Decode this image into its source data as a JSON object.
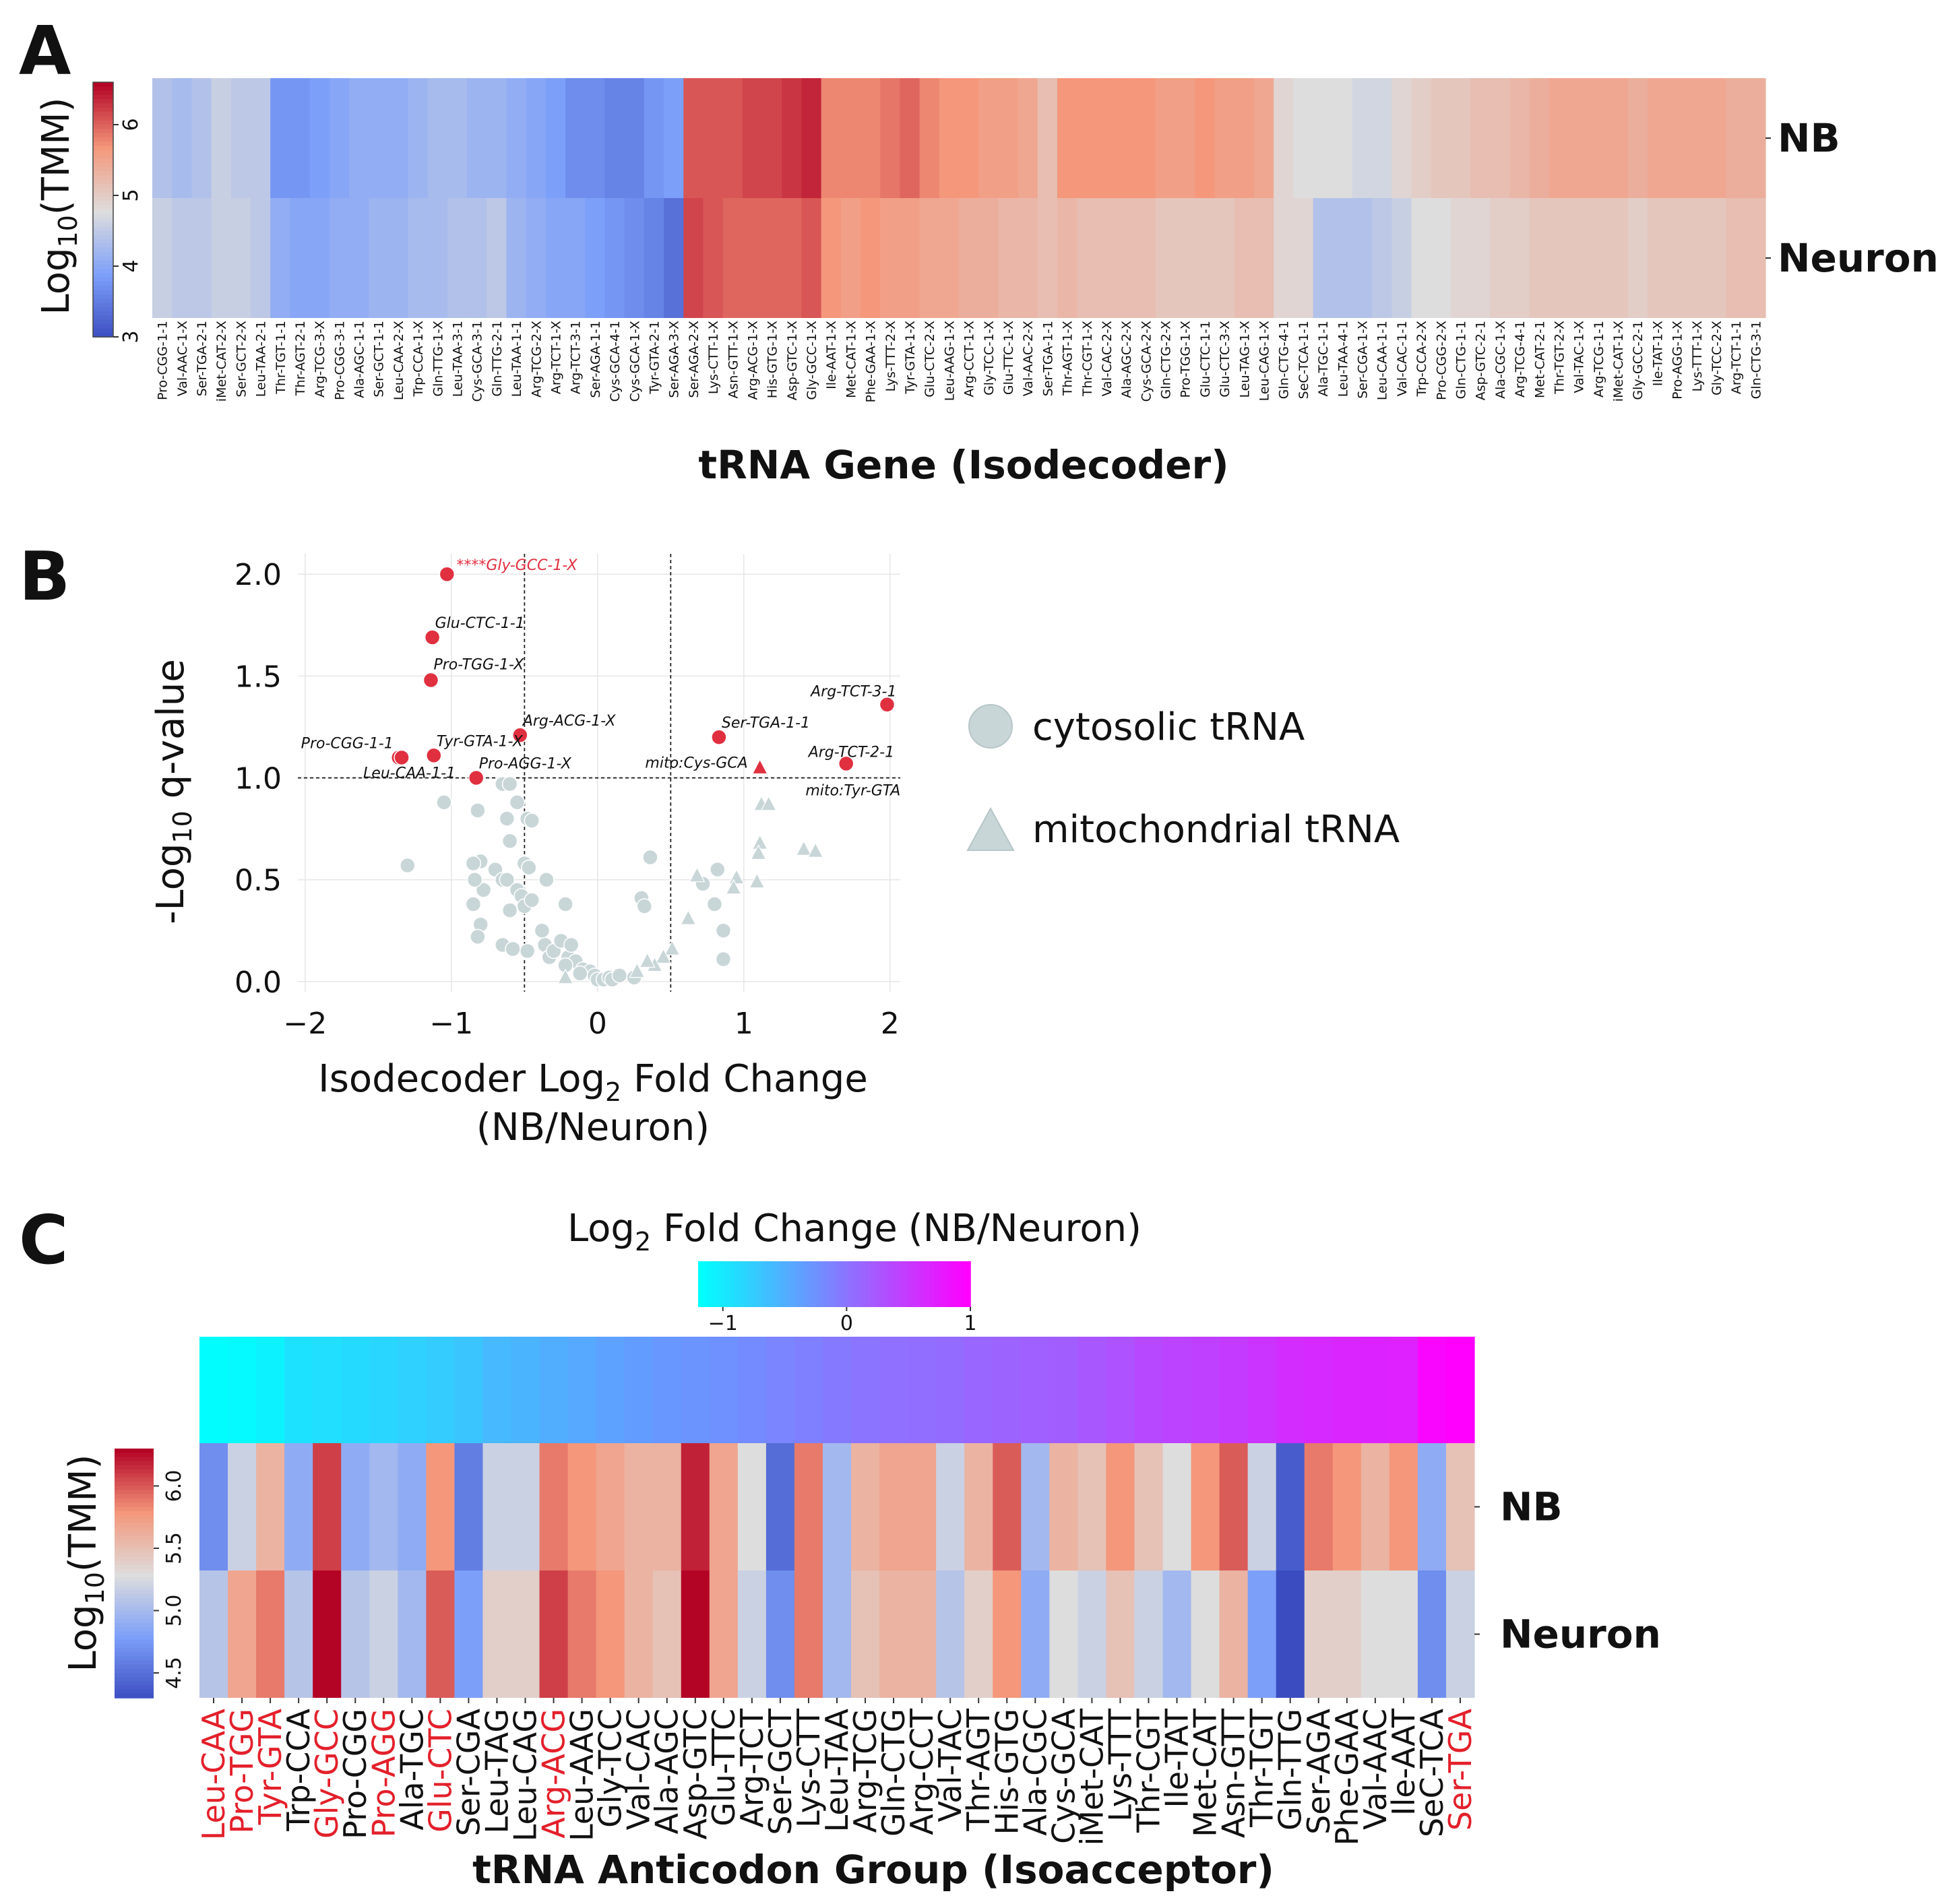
{
  "panels": {
    "a": "A",
    "b": "B",
    "c": "C"
  },
  "chart_data": [
    {
      "type": "heatmap",
      "id": "A",
      "title": "",
      "xlabel": "tRNA Gene (Isodecoder)",
      "colorbar_label": "Log10(TMM)",
      "colorbar_ticks": [
        3,
        4,
        5,
        6
      ],
      "colorbar_range": [
        3,
        6.6
      ],
      "rows": [
        "NB",
        "Neuron"
      ],
      "categories": [
        "Pro-CGG-1-1",
        "Val-AAC-1-X",
        "Ser-TGA-2-1",
        "iMet-CAT-2-X",
        "Ser-GCT-2-X",
        "Leu-TAA-2-1",
        "Thr-TGT-1-1",
        "Thr-AGT-2-1",
        "Arg-TCG-3-X",
        "Pro-CGG-3-1",
        "Ala-AGC-1-1",
        "Ser-GCT-1-1",
        "Leu-CAA-2-X",
        "Trp-CCA-1-X",
        "Gln-TTG-1-X",
        "Leu-TAA-3-1",
        "Cys-GCA-3-1",
        "Gln-TTG-2-1",
        "Leu-TAA-1-1",
        "Arg-TCG-2-X",
        "Arg-TCT-1-X",
        "Arg-TCT-3-1",
        "Ser-AGA-1-1",
        "Cys-GCA-4-1",
        "Cys-GCA-1-X",
        "Tyr-GTA-2-1",
        "Ser-AGA-3-X",
        "Ser-AGA-2-X",
        "Lys-CTT-1-X",
        "Asn-GTT-1-X",
        "Arg-ACG-1-X",
        "His-GTG-1-X",
        "Asp-GTC-1-X",
        "Gly-GCC-1-X",
        "Ile-AAT-1-X",
        "Met-CAT-1-X",
        "Phe-GAA-1-X",
        "Lys-TTT-2-X",
        "Tyr-GTA-1-X",
        "Glu-CTC-2-X",
        "Leu-AAG-1-X",
        "Arg-CCT-1-X",
        "Gly-TCC-1-X",
        "Glu-TTC-1-X",
        "Val-AAC-2-X",
        "Ser-TGA-1-1",
        "Thr-AGT-1-X",
        "Thr-CGT-1-X",
        "Val-CAC-2-X",
        "Ala-AGC-2-X",
        "Cys-GCA-2-X",
        "Gln-CTG-2-X",
        "Pro-TGG-1-X",
        "Glu-CTC-1-1",
        "Glu-CTC-3-X",
        "Leu-TAG-1-X",
        "Leu-CAG-1-X",
        "Gln-CTG-4-1",
        "SeC-TCA-1-1",
        "Ala-TGC-1-1",
        "Leu-TAA-4-1",
        "Ser-CGA-1-X",
        "Leu-CAA-1-1",
        "Val-CAC-1-1",
        "Trp-CCA-2-X",
        "Pro-CGG-2-X",
        "Gln-CTG-1-1",
        "Asp-GTC-2-1",
        "Ala-CGC-1-X",
        "Arg-TCG-4-1",
        "Met-CAT-2-1",
        "Thr-TGT-2-X",
        "Val-TAC-1-X",
        "Arg-TCG-1-1",
        "iMet-CAT-1-X",
        "Gly-GCC-2-1",
        "Ile-TAT-1-X",
        "Pro-AGG-1-X",
        "Lys-TTT-1-X",
        "Gly-TCC-2-X",
        "Arg-TCT-1-1",
        "Gln-CTG-3-1"
      ],
      "values": {
        "NB": [
          4.4,
          4.3,
          4.4,
          4.6,
          4.5,
          4.5,
          3.8,
          3.8,
          3.9,
          4.0,
          4.1,
          4.1,
          4.1,
          4.2,
          4.3,
          4.3,
          4.2,
          4.2,
          4.1,
          4.0,
          3.9,
          3.7,
          3.7,
          3.6,
          3.6,
          3.8,
          3.9,
          6.1,
          6.1,
          6.1,
          6.2,
          6.2,
          6.3,
          6.4,
          5.8,
          5.8,
          5.8,
          5.9,
          6.0,
          5.8,
          5.7,
          5.7,
          5.6,
          5.6,
          5.5,
          5.2,
          5.7,
          5.7,
          5.7,
          5.7,
          5.7,
          5.6,
          5.6,
          5.7,
          5.6,
          5.6,
          5.5,
          4.9,
          4.8,
          4.8,
          4.8,
          4.7,
          4.7,
          4.9,
          5.0,
          5.1,
          5.1,
          5.2,
          5.2,
          5.3,
          5.4,
          5.5,
          5.5,
          5.5,
          5.5,
          5.4,
          5.5,
          5.5,
          5.5,
          5.5,
          5.4,
          5.4
        ],
        "Neuron": [
          4.6,
          4.5,
          4.5,
          4.6,
          4.6,
          4.5,
          4.1,
          4.0,
          4.0,
          4.1,
          4.1,
          4.2,
          4.2,
          4.3,
          4.3,
          4.4,
          4.4,
          4.5,
          4.2,
          4.1,
          4.0,
          4.0,
          3.9,
          3.8,
          3.7,
          3.6,
          3.4,
          6.2,
          6.1,
          6.0,
          6.0,
          6.0,
          6.0,
          6.1,
          5.7,
          5.6,
          5.7,
          5.6,
          5.6,
          5.5,
          5.5,
          5.4,
          5.4,
          5.3,
          5.3,
          5.2,
          5.3,
          5.2,
          5.2,
          5.2,
          5.2,
          5.1,
          5.1,
          5.1,
          5.1,
          5.2,
          5.2,
          4.9,
          4.9,
          4.4,
          4.4,
          4.4,
          4.5,
          4.6,
          4.8,
          4.8,
          4.9,
          4.9,
          5.0,
          5.0,
          5.1,
          5.1,
          5.1,
          5.1,
          5.1,
          5.0,
          5.1,
          5.1,
          5.1,
          5.1,
          5.2,
          5.2
        ]
      }
    },
    {
      "type": "scatter",
      "id": "B",
      "xlabel": "Isodecoder Log2 Fold Change",
      "xlabel_main": "Isodecoder Log",
      "xlabel_sub": "2",
      "xlabel_tail": " Fold Change",
      "xlabel2": "(NB/Neuron)",
      "ylabel": "-Log10 q-value",
      "xlim": [
        -2.05,
        2.07
      ],
      "ylim": [
        -0.05,
        2.1
      ],
      "xticks": [
        -2,
        -1,
        0,
        1,
        2
      ],
      "yticks": [
        0.0,
        0.5,
        1.0,
        1.5,
        2.0
      ],
      "xtick_labels": [
        "−2",
        "−1",
        "0",
        "1",
        "2"
      ],
      "ytick_labels": [
        "0.0",
        "0.5",
        "1.0",
        "1.5",
        "2.0"
      ],
      "vlines": [
        -0.5,
        0.5
      ],
      "hline": 1.0,
      "legend": [
        "cytosolic tRNA",
        "mitochondrial tRNA"
      ],
      "significant": [
        {
          "label": "****Gly-GCC-1-X",
          "x": -1.03,
          "y": 2.0,
          "shape": "circle",
          "red_label": true
        },
        {
          "label": "Glu-CTC-1-1",
          "x": -1.13,
          "y": 1.69,
          "shape": "circle",
          "red_label": false
        },
        {
          "label": "Pro-TGG-1-X",
          "x": -1.14,
          "y": 1.48,
          "shape": "circle",
          "red_label": false
        },
        {
          "label": "Arg-ACG-1-X",
          "x": -0.53,
          "y": 1.21,
          "shape": "circle",
          "red_label": false
        },
        {
          "label": "Tyr-GTA-1-X",
          "x": -1.12,
          "y": 1.11,
          "shape": "circle",
          "red_label": false
        },
        {
          "label": "Pro-CGG-1-1",
          "x": -1.36,
          "y": 1.1,
          "shape": "circle",
          "red_label": false
        },
        {
          "label": "Leu-CAA-1-1",
          "x": -1.34,
          "y": 1.1,
          "shape": "circle",
          "red_label": false
        },
        {
          "label": "Pro-AGG-1-X",
          "x": -0.83,
          "y": 1.0,
          "shape": "circle",
          "red_label": false
        },
        {
          "label": "Ser-TGA-1-1",
          "x": 0.83,
          "y": 1.2,
          "shape": "circle",
          "red_label": false
        },
        {
          "label": "mito:Cys-GCA",
          "x": 1.11,
          "y": 1.05,
          "shape": "triangle",
          "red_label": false
        },
        {
          "label": "Arg-TCT-3-1",
          "x": 1.98,
          "y": 1.36,
          "shape": "circle",
          "red_label": false
        },
        {
          "label": "Arg-TCT-2-1",
          "x": 1.7,
          "y": 1.07,
          "shape": "circle",
          "red_label": false
        },
        {
          "label": "mito:Tyr-GTA",
          "x": 1.68,
          "y": 1.06,
          "shape": "circle",
          "red_label": false
        }
      ],
      "nonsignificant_cytosolic": [
        [
          -1.3,
          0.57
        ],
        [
          -1.05,
          0.88
        ],
        [
          -0.82,
          0.84
        ],
        [
          -0.8,
          0.59
        ],
        [
          -0.78,
          0.45
        ],
        [
          -0.65,
          0.97
        ],
        [
          -0.6,
          0.97
        ],
        [
          -0.62,
          0.8
        ],
        [
          -0.6,
          0.69
        ],
        [
          -0.55,
          0.88
        ],
        [
          -0.48,
          0.8
        ],
        [
          -0.45,
          0.79
        ],
        [
          -0.85,
          0.58
        ],
        [
          -0.84,
          0.5
        ],
        [
          -0.85,
          0.38
        ],
        [
          -0.8,
          0.28
        ],
        [
          -0.82,
          0.22
        ],
        [
          -0.7,
          0.55
        ],
        [
          -0.65,
          0.5
        ],
        [
          -0.62,
          0.5
        ],
        [
          -0.6,
          0.35
        ],
        [
          -0.55,
          0.45
        ],
        [
          -0.52,
          0.42
        ],
        [
          -0.5,
          0.58
        ],
        [
          -0.5,
          0.37
        ],
        [
          -0.47,
          0.56
        ],
        [
          -0.45,
          0.4
        ],
        [
          -0.48,
          0.15
        ],
        [
          -0.65,
          0.18
        ],
        [
          -0.58,
          0.16
        ],
        [
          -0.35,
          0.5
        ],
        [
          -0.22,
          0.38
        ],
        [
          -0.38,
          0.25
        ],
        [
          -0.36,
          0.18
        ],
        [
          -0.33,
          0.12
        ],
        [
          -0.3,
          0.15
        ],
        [
          -0.25,
          0.2
        ],
        [
          -0.2,
          0.12
        ],
        [
          -0.15,
          0.1
        ],
        [
          -0.18,
          0.18
        ],
        [
          -0.1,
          0.06
        ],
        [
          -0.05,
          0.05
        ],
        [
          -0.02,
          0.03
        ],
        [
          0.0,
          0.01
        ],
        [
          0.04,
          0.01
        ],
        [
          0.08,
          0.02
        ],
        [
          0.1,
          0.01
        ],
        [
          0.15,
          0.03
        ],
        [
          0.25,
          0.02
        ],
        [
          0.3,
          0.41
        ],
        [
          0.32,
          0.37
        ],
        [
          0.36,
          0.61
        ],
        [
          0.72,
          0.48
        ],
        [
          0.82,
          0.55
        ],
        [
          0.8,
          0.38
        ],
        [
          0.86,
          0.25
        ],
        [
          0.86,
          0.11
        ],
        [
          -0.12,
          0.04
        ],
        [
          -0.22,
          0.08
        ]
      ],
      "nonsignificant_mitochondrial": [
        [
          1.12,
          0.87
        ],
        [
          1.17,
          0.87
        ],
        [
          1.11,
          0.68
        ],
        [
          1.1,
          0.63
        ],
        [
          1.09,
          0.49
        ],
        [
          1.41,
          0.65
        ],
        [
          1.49,
          0.64
        ],
        [
          0.95,
          0.51
        ],
        [
          0.93,
          0.46
        ],
        [
          0.68,
          0.52
        ],
        [
          0.62,
          0.31
        ],
        [
          0.51,
          0.16
        ],
        [
          0.45,
          0.12
        ],
        [
          0.39,
          0.08
        ],
        [
          0.34,
          0.1
        ],
        [
          0.27,
          0.05
        ],
        [
          -0.22,
          0.02
        ]
      ]
    },
    {
      "type": "heatmap",
      "id": "C",
      "xlabel": "tRNA Anticodon Group (Isoacceptor)",
      "colorbar_label": "Log10(TMM)",
      "colorbar_ticks": [
        4.5,
        5.0,
        5.5,
        6.0
      ],
      "colorbar_range": [
        4.3,
        6.3
      ],
      "fc_colorbar_label": "Log2 Fold Change (NB/Neuron)",
      "fc_colorbar_main": "Log",
      "fc_colorbar_sub": "2",
      "fc_colorbar_tail": " Fold Change",
      "fc_colorbar_paren": "(NB/Neuron)",
      "fc_ticks": [
        -1,
        0,
        1
      ],
      "fc_tick_labels": [
        "−1",
        "0",
        "1"
      ],
      "fc_range": [
        -1.2,
        1.0
      ],
      "rows": [
        "NB",
        "Neuron"
      ],
      "categories": [
        "Leu-CAA",
        "Pro-TGG",
        "Tyr-GTA",
        "Trp-CCA",
        "Gly-GCC",
        "Pro-CGG",
        "Pro-AGG",
        "Ala-TGC",
        "Glu-CTC",
        "Ser-CGA",
        "Leu-TAG",
        "Leu-CAG",
        "Arg-ACG",
        "Leu-AAG",
        "Gly-TCC",
        "Val-CAC",
        "Ala-AGC",
        "Asp-GTC",
        "Glu-TTC",
        "Arg-TCT",
        "Ser-GCT",
        "Lys-CTT",
        "Leu-TAA",
        "Arg-TCG",
        "Gln-CTG",
        "Arg-CCT",
        "Val-TAC",
        "Thr-AGT",
        "His-GTG",
        "Ala-CGC",
        "Cys-GCA",
        "iMet-CAT",
        "Lys-TTT",
        "Thr-CGT",
        "Ile-TAT",
        "Met-CAT",
        "Asn-GTT",
        "Thr-TGT",
        "Gln-TTG",
        "Ser-AGA",
        "Phe-GAA",
        "Val-AAC",
        "Ile-AAT",
        "SeC-TCA",
        "Ser-TGA"
      ],
      "red_categories": [
        "Leu-CAA",
        "Pro-TGG",
        "Tyr-GTA",
        "Gly-GCC",
        "Pro-AGG",
        "Glu-CTC",
        "Arg-ACG",
        "Ser-TGA"
      ],
      "fold_change": [
        -1.18,
        -1.16,
        -1.1,
        -0.95,
        -0.92,
        -0.88,
        -0.85,
        -0.8,
        -0.75,
        -0.7,
        -0.6,
        -0.55,
        -0.5,
        -0.45,
        -0.4,
        -0.35,
        -0.3,
        -0.28,
        -0.25,
        -0.2,
        -0.15,
        -0.1,
        -0.05,
        0.0,
        0.03,
        0.05,
        0.08,
        0.12,
        0.15,
        0.18,
        0.2,
        0.25,
        0.3,
        0.38,
        0.42,
        0.45,
        0.5,
        0.55,
        0.62,
        0.65,
        0.68,
        0.7,
        0.72,
        0.95,
        1.0
      ],
      "values": {
        "NB": [
          4.7,
          5.2,
          5.6,
          4.9,
          6.1,
          4.9,
          5.0,
          4.9,
          5.8,
          4.6,
          5.2,
          5.2,
          5.9,
          5.8,
          5.7,
          5.6,
          5.6,
          6.2,
          5.7,
          5.3,
          4.5,
          5.9,
          5.0,
          5.6,
          5.7,
          5.7,
          5.2,
          5.6,
          6.0,
          5.0,
          5.6,
          5.5,
          5.8,
          5.5,
          5.3,
          5.8,
          6.0,
          5.2,
          4.4,
          5.9,
          5.8,
          5.6,
          5.8,
          4.9,
          5.5
        ],
        "Neuron": [
          5.1,
          5.7,
          5.9,
          5.1,
          6.3,
          5.1,
          5.2,
          5.0,
          6.0,
          4.8,
          5.4,
          5.4,
          6.1,
          5.9,
          5.8,
          5.6,
          5.5,
          6.3,
          5.7,
          5.2,
          4.7,
          5.9,
          5.0,
          5.5,
          5.6,
          5.6,
          5.1,
          5.4,
          5.8,
          4.9,
          5.3,
          5.2,
          5.5,
          5.2,
          5.0,
          5.3,
          5.6,
          4.8,
          4.2,
          5.4,
          5.4,
          5.3,
          5.3,
          4.7,
          5.2
        ]
      }
    }
  ]
}
